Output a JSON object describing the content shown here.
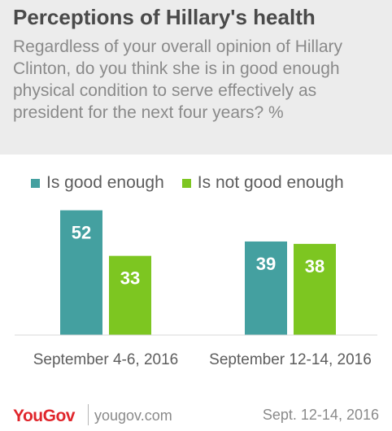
{
  "header": {
    "title": "Perceptions of Hillary's health",
    "subtitle": "Regardless of your overall opinion of Hillary Clinton, do you think she is in good enough physical condition to serve effectively as president for the next four years? %"
  },
  "chart_data": {
    "type": "bar",
    "categories": [
      "September 4-6, 2016",
      "September 12-14, 2016"
    ],
    "series": [
      {
        "name": "Is good enough",
        "values": [
          52,
          39
        ],
        "color": "#44a0a0"
      },
      {
        "name": "Is not good enough",
        "values": [
          33,
          38
        ],
        "color": "#7dc621"
      }
    ],
    "ylim": [
      0,
      60
    ],
    "grid": false,
    "legend": "top-left",
    "data_labels": true
  },
  "footer": {
    "logo": "YouGov",
    "site": "yougov.com",
    "date": "Sept. 12-14, 2016"
  }
}
